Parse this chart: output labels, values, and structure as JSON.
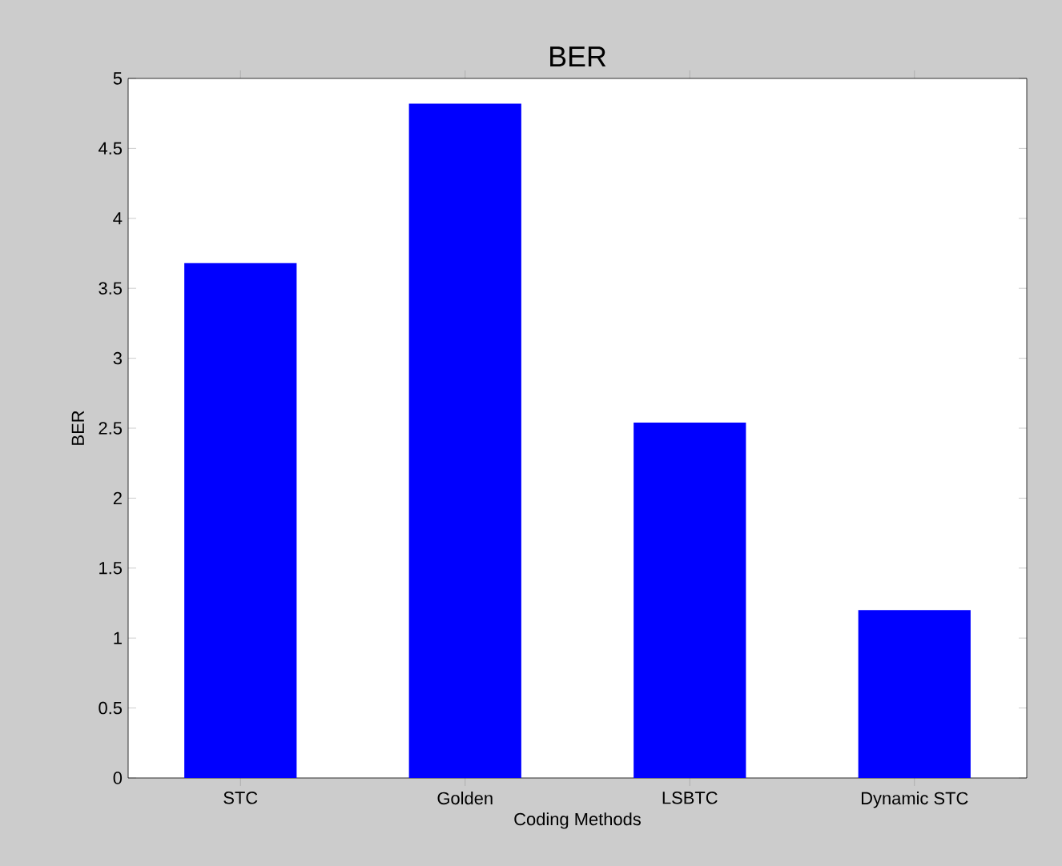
{
  "chart_data": {
    "type": "bar",
    "title": "BER",
    "xlabel": "Coding Methods",
    "ylabel": "BER",
    "categories": [
      "STC",
      "Golden",
      "LSBTC",
      "Dynamic STC"
    ],
    "values": [
      3.68,
      4.82,
      2.54,
      1.2
    ],
    "color": "#0000ff",
    "ylim": [
      0,
      5
    ],
    "yticks": [
      0,
      0.5,
      1,
      1.5,
      2,
      2.5,
      3,
      3.5,
      4,
      4.5,
      5
    ],
    "grid": false
  }
}
